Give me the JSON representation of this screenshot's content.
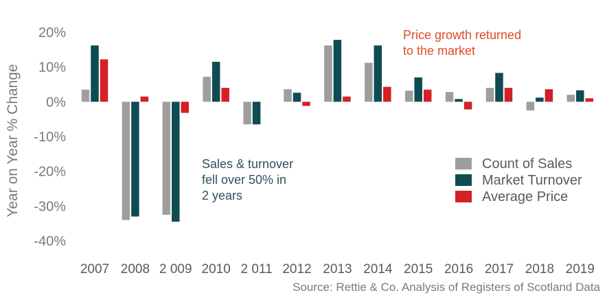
{
  "chart_data": {
    "type": "bar",
    "ylabel": "Year on Year % Change",
    "ylim": [
      -40,
      20
    ],
    "yticks": [
      20,
      10,
      0,
      -10,
      -20,
      -30,
      -40
    ],
    "ytick_labels": [
      "20%",
      "10%",
      "0%",
      "-10%",
      "-20%",
      "-30%",
      "-40%"
    ],
    "categories": [
      "2007",
      "2008",
      "2 009",
      "2010",
      "2 011",
      "2012",
      "2013",
      "2014",
      "2015",
      "2016",
      "2017",
      "2018",
      "2019"
    ],
    "series": [
      {
        "name": "Count of Sales",
        "color": "#9e9e9e",
        "values": [
          3.5,
          -34,
          -32.5,
          7.2,
          -6.5,
          3.6,
          16.2,
          11.2,
          3.2,
          2.8,
          4.0,
          -2.5,
          2.0
        ]
      },
      {
        "name": "Market Turnover",
        "color": "#0f4c52",
        "values": [
          16.2,
          -33,
          -34.5,
          11.5,
          -6.5,
          2.6,
          17.8,
          16.2,
          7.0,
          0.8,
          8.3,
          1.2,
          3.3
        ]
      },
      {
        "name": "Average Price",
        "color": "#d42027",
        "values": [
          12.2,
          1.5,
          -3.2,
          4.0,
          0,
          -1.2,
          1.5,
          4.3,
          3.5,
          -2.2,
          4.0,
          3.6,
          1.0
        ]
      }
    ],
    "legend_position": "right",
    "annotations": [
      {
        "text_lines": [
          "Price growth returned",
          "to the market"
        ],
        "color": "#e04a2a"
      },
      {
        "text_lines": [
          "Sales & turnover",
          "fell over 50% in",
          "2 years"
        ],
        "color": "#2f4f5a"
      }
    ],
    "source": "Source: Rettie & Co. Analysis of Registers of Scotland Data",
    "grid": false,
    "text_color": "#7a7a7a"
  }
}
